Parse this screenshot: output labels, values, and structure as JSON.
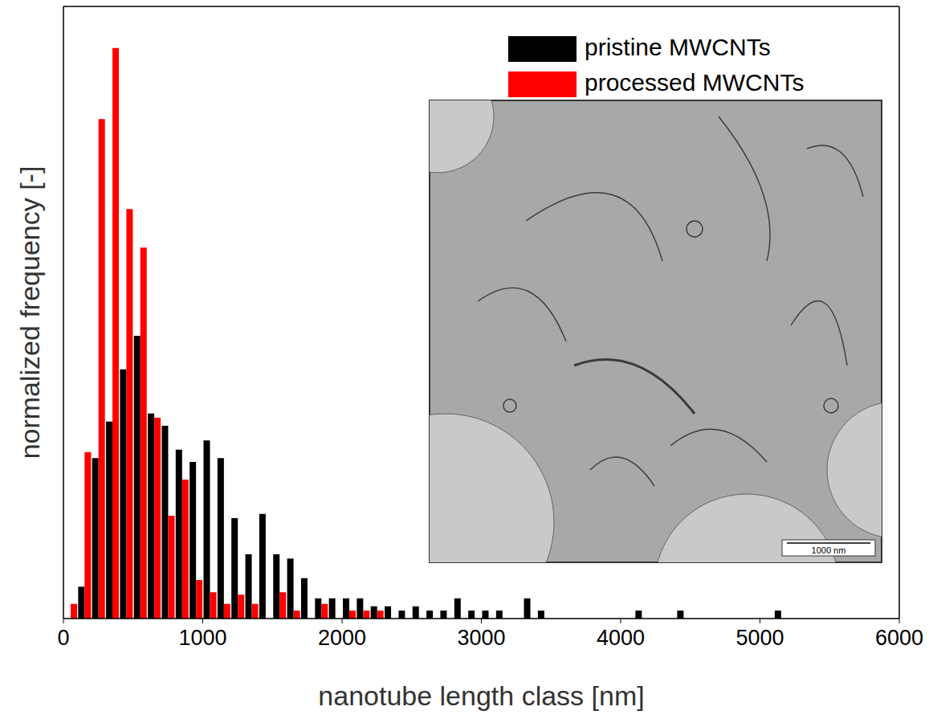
{
  "chart_data": {
    "type": "histogram",
    "x_label": "nanotube length class [nm]",
    "y_label": "normalized frequency [-]",
    "bins": [
      0,
      100,
      200,
      300,
      400,
      500,
      600,
      700,
      800,
      900,
      1000,
      1100,
      1200,
      1300,
      1400,
      1500,
      1600,
      1700,
      1800,
      1900,
      2000,
      2100,
      2200,
      2300,
      2400,
      2500,
      2600,
      2700,
      2800,
      2900,
      3000,
      3100,
      3200,
      3300,
      3400,
      3500,
      3600,
      3700,
      3800,
      3900,
      4000,
      4100,
      4200,
      4300,
      4400,
      4500,
      4600,
      4700,
      4800,
      4900,
      5000,
      5100,
      5200,
      5300,
      5400,
      5500,
      5600,
      5700,
      5800,
      5900,
      6000
    ],
    "series": [
      {
        "name": "pristine MWCNTs",
        "color": "#000000",
        "values": [
          0,
          0.052,
          0.262,
          0.322,
          0.407,
          0.462,
          0.335,
          0.315,
          0.276,
          0.256,
          0.291,
          0.262,
          0.164,
          0.105,
          0.171,
          0.105,
          0.098,
          0.066,
          0.033,
          0.033,
          0.033,
          0.033,
          0.02,
          0.02,
          0.013,
          0.02,
          0.013,
          0.013,
          0.033,
          0.013,
          0.013,
          0.013,
          0,
          0.033,
          0.013,
          0,
          0,
          0,
          0,
          0,
          0,
          0.013,
          0,
          0,
          0.013,
          0,
          0,
          0,
          0,
          0,
          0,
          0.013,
          0,
          0,
          0,
          0,
          0,
          0,
          0,
          0
        ]
      },
      {
        "name": "processed MWCNTs",
        "color": "#ff0000",
        "values": [
          0.024,
          0.272,
          0.816,
          0.932,
          0.669,
          0.606,
          0.328,
          0.168,
          0.227,
          0.063,
          0.043,
          0.024,
          0.039,
          0.024,
          0,
          0.043,
          0.013,
          0,
          0.024,
          0,
          0.013,
          0.013,
          0.013,
          0,
          0,
          0,
          0,
          0,
          0,
          0,
          0,
          0,
          0,
          0,
          0,
          0,
          0,
          0,
          0,
          0,
          0,
          0,
          0,
          0,
          0,
          0,
          0,
          0,
          0,
          0,
          0,
          0,
          0,
          0,
          0,
          0,
          0,
          0,
          0,
          0
        ]
      }
    ],
    "xlim": [
      0,
      6000
    ],
    "xticks": [
      0,
      1000,
      2000,
      3000,
      4000,
      5000,
      6000
    ],
    "ylim": [
      0,
      1
    ],
    "tick_labels": "x",
    "legend": "upper right",
    "inset": {
      "scale_bar": "1000 nm"
    }
  }
}
